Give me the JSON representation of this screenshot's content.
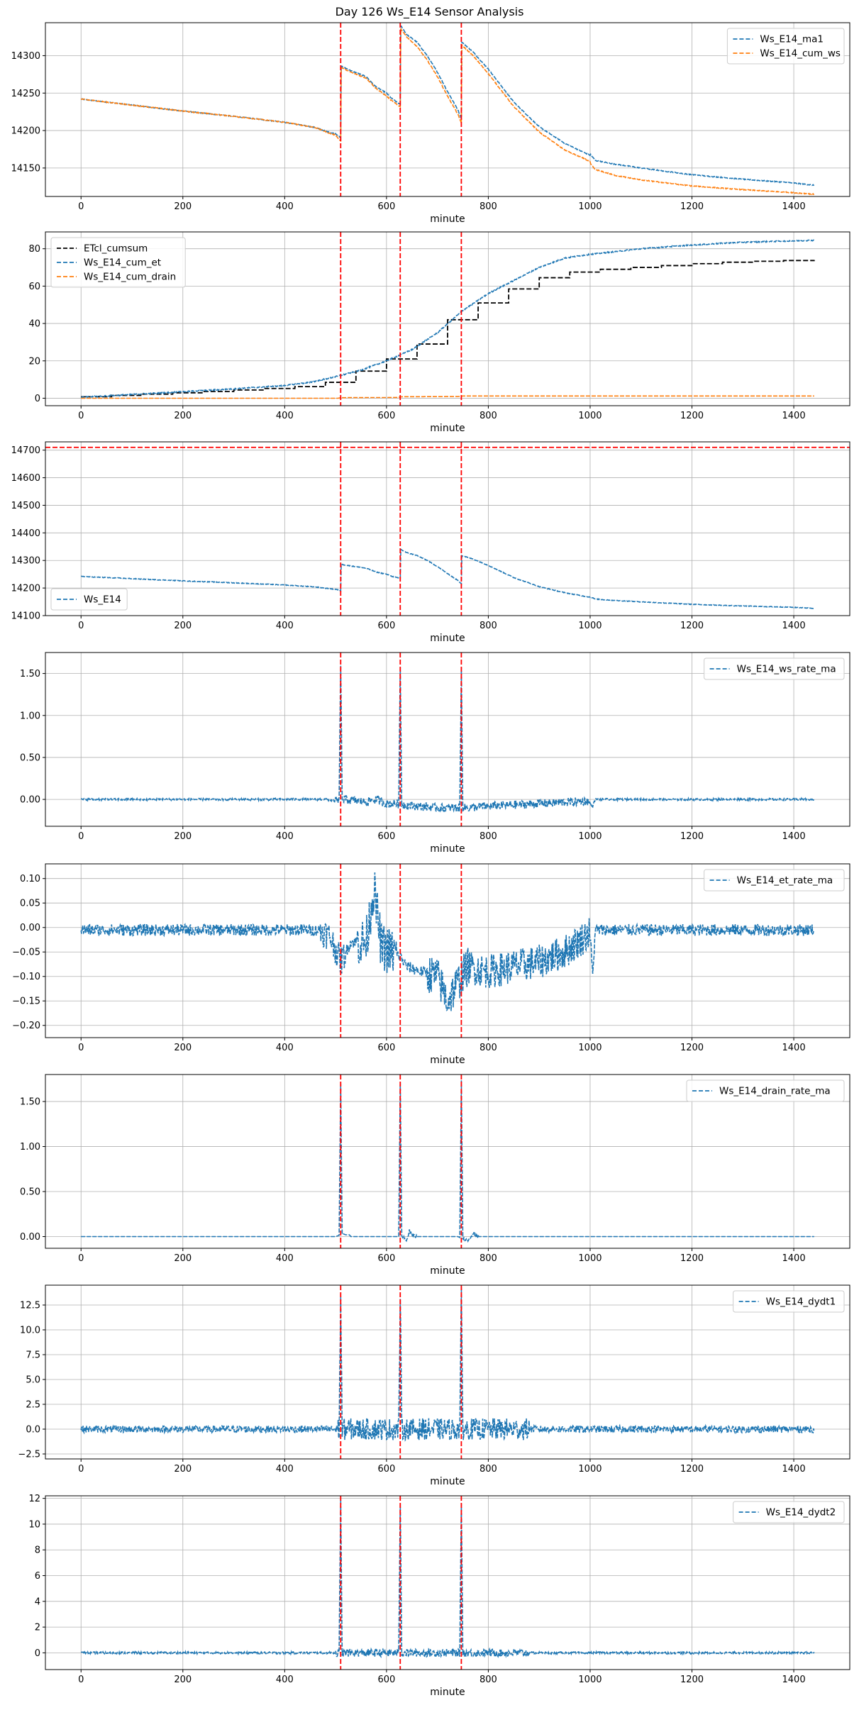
{
  "colors": {
    "blue": "#1f77b4",
    "orange": "#ff7f0e",
    "black": "#000000",
    "red": "#ff0000",
    "grid": "#b0b0b0"
  },
  "chart_data": {
    "title": "Day 126 Ws_E14 Sensor Analysis",
    "type": "line",
    "event_lines_x": [
      510,
      627,
      747
    ],
    "panels": [
      {
        "id": "ma1-cumws",
        "xlabel": "minute",
        "xlim": [
          -70,
          1510
        ],
        "xticks": [
          0,
          200,
          400,
          600,
          800,
          1000,
          1200,
          1400
        ],
        "ylim": [
          14112,
          14344
        ],
        "yticks": [
          14150,
          14200,
          14250,
          14300
        ],
        "legend_loc": "upper-right",
        "hline": null,
        "series": [
          {
            "name": "Ws_E14_ma1",
            "color": "blue",
            "style": "dashed",
            "noise": 0.6,
            "x": [
              0,
              100,
              200,
              300,
              400,
              460,
              490,
              500,
              510,
              511,
              530,
              560,
              580,
              600,
              610,
              620,
              627,
              628,
              640,
              660,
              680,
              700,
              720,
              740,
              747,
              748,
              770,
              800,
              850,
              900,
              950,
              990,
              1000,
              1001,
              1010,
              1050,
              1100,
              1200,
              1300,
              1400,
              1440
            ],
            "y": [
              14242,
              14234,
              14226,
              14219,
              14211,
              14204,
              14197,
              14196,
              14190,
              14286,
              14280,
              14272,
              14258,
              14250,
              14243,
              14238,
              14235,
              14340,
              14328,
              14318,
              14300,
              14278,
              14252,
              14228,
              14216,
              14318,
              14305,
              14282,
              14238,
              14205,
              14183,
              14170,
              14167,
              14168,
              14160,
              14155,
              14150,
              14141,
              14135,
              14130,
              14127
            ]
          },
          {
            "name": "Ws_E14_cum_ws",
            "color": "orange",
            "style": "dashed",
            "noise": 0.6,
            "x": [
              0,
              100,
              200,
              300,
              400,
              460,
              490,
              500,
              510,
              511,
              530,
              560,
              580,
              600,
              610,
              620,
              627,
              628,
              640,
              660,
              680,
              700,
              720,
              740,
              747,
              748,
              770,
              800,
              850,
              900,
              950,
              990,
              1000,
              1001,
              1010,
              1050,
              1100,
              1200,
              1300,
              1400,
              1440
            ],
            "y": [
              14242,
              14234,
              14226,
              14219,
              14211,
              14204,
              14196,
              14194,
              14186,
              14284,
              14278,
              14270,
              14256,
              14246,
              14240,
              14235,
              14232,
              14336,
              14325,
              14312,
              14294,
              14272,
              14246,
              14222,
              14210,
              14314,
              14300,
              14276,
              14232,
              14198,
              14174,
              14162,
              14158,
              14155,
              14148,
              14140,
              14134,
              14126,
              14121,
              14117,
              14115
            ]
          }
        ]
      },
      {
        "id": "cumulative",
        "xlabel": "minute",
        "xlim": [
          -70,
          1510
        ],
        "xticks": [
          0,
          200,
          400,
          600,
          800,
          1000,
          1200,
          1400
        ],
        "ylim": [
          -4,
          89
        ],
        "yticks": [
          0,
          20,
          40,
          60,
          80
        ],
        "legend_loc": "upper-left",
        "hline": null,
        "series": [
          {
            "name": "ETcl_cumsum",
            "color": "black",
            "style": "step",
            "noise": 0,
            "x": [
              0,
              60,
              120,
              180,
              240,
              300,
              360,
              420,
              480,
              540,
              600,
              660,
              720,
              780,
              840,
              900,
              960,
              1020,
              1080,
              1140,
              1200,
              1260,
              1320,
              1380,
              1440
            ],
            "y": [
              0.8,
              1.5,
              2.2,
              2.9,
              3.6,
              4.4,
              5.2,
              6.2,
              8.5,
              14.5,
              21,
              29,
              42,
              51,
              58.5,
              64.5,
              67.5,
              69,
              70,
              71,
              72,
              72.8,
              73.3,
              73.7,
              74
            ]
          },
          {
            "name": "Ws_E14_cum_et",
            "color": "blue",
            "style": "dashed",
            "noise": 0.3,
            "x": [
              0,
              100,
              200,
              300,
              400,
              450,
              500,
              550,
              600,
              650,
              700,
              750,
              800,
              850,
              900,
              950,
              1000,
              1100,
              1200,
              1300,
              1440
            ],
            "y": [
              0.5,
              2,
              3.5,
              5,
              6.8,
              8.5,
              11.5,
              15,
              20,
              26,
              35,
              47,
              56,
              63,
              70,
              75,
              77,
              80,
              82,
              83.5,
              84.5
            ]
          },
          {
            "name": "Ws_E14_cum_drain",
            "color": "orange",
            "style": "dashed",
            "noise": 0,
            "x": [
              0,
              505,
              511,
              620,
              630,
              740,
              750,
              1440
            ],
            "y": [
              0,
              0,
              0.3,
              0.4,
              0.8,
              0.9,
              1.2,
              1.2
            ]
          }
        ]
      },
      {
        "id": "raw",
        "xlabel": "minute",
        "xlim": [
          -70,
          1510
        ],
        "xticks": [
          0,
          200,
          400,
          600,
          800,
          1000,
          1200,
          1400
        ],
        "ylim": [
          14100,
          14730
        ],
        "yticks": [
          14100,
          14200,
          14300,
          14400,
          14500,
          14600,
          14700
        ],
        "legend_loc": "lower-left",
        "hline": 14710,
        "series": [
          {
            "name": "Ws_E14",
            "color": "blue",
            "style": "dashed",
            "noise": 1.2,
            "x": [
              0,
              100,
              200,
              300,
              400,
              460,
              490,
              500,
              510,
              511,
              530,
              560,
              580,
              600,
              610,
              620,
              627,
              628,
              640,
              660,
              680,
              700,
              720,
              740,
              747,
              748,
              770,
              800,
              850,
              900,
              950,
              990,
              1000,
              1001,
              1010,
              1050,
              1100,
              1200,
              1300,
              1400,
              1440
            ],
            "y": [
              14242,
              14234,
              14226,
              14219,
              14211,
              14204,
              14197,
              14196,
              14190,
              14286,
              14280,
              14272,
              14258,
              14250,
              14243,
              14238,
              14235,
              14340,
              14328,
              14318,
              14300,
              14278,
              14252,
              14228,
              14216,
              14318,
              14305,
              14282,
              14238,
              14205,
              14183,
              14170,
              14167,
              14168,
              14160,
              14155,
              14150,
              14141,
              14135,
              14130,
              14127
            ]
          }
        ]
      },
      {
        "id": "ws-rate",
        "xlabel": "minute",
        "xlim": [
          -70,
          1510
        ],
        "xticks": [
          0,
          200,
          400,
          600,
          800,
          1000,
          1200,
          1400
        ],
        "ylim": [
          -0.32,
          1.75
        ],
        "yticks": [
          0.0,
          0.5,
          1.0,
          1.5
        ],
        "legend_loc": "upper-right",
        "hline": null,
        "series": [
          {
            "name": "Ws_E14_ws_rate_ma",
            "color": "blue",
            "style": "dashed",
            "noise": 0.012,
            "noise_ranges": [
              [
                500,
                1000,
                0.05
              ]
            ],
            "spikes": [
              [
                510,
                1.65
              ],
              [
                627,
                1.62
              ],
              [
                747,
                1.65
              ]
            ],
            "x": [
              0,
              480,
              500,
              520,
              560,
              580,
              600,
              620,
              640,
              700,
              760,
              800,
              900,
              995,
              1000,
              1005,
              1010,
              1440
            ],
            "y": [
              0,
              0,
              -0.02,
              0,
              -0.03,
              0,
              -0.05,
              -0.05,
              -0.07,
              -0.1,
              -0.1,
              -0.08,
              -0.05,
              -0.02,
              -0.05,
              -0.08,
              0,
              0
            ]
          }
        ]
      },
      {
        "id": "et-rate",
        "xlabel": "minute",
        "xlim": [
          -70,
          1510
        ],
        "xticks": [
          0,
          200,
          400,
          600,
          800,
          1000,
          1200,
          1400
        ],
        "ylim": [
          -0.225,
          0.13
        ],
        "yticks": [
          -0.2,
          -0.15,
          -0.1,
          -0.05,
          0.0,
          0.05,
          0.1
        ],
        "legend_loc": "upper-right",
        "hline": null,
        "series": [
          {
            "name": "Ws_E14_et_rate_ma",
            "color": "blue",
            "style": "dashed",
            "noise": 0.012,
            "noise_ranges": [
              [
                470,
                520,
                0.03
              ],
              [
                540,
                620,
                0.05
              ],
              [
                680,
                760,
                0.04
              ],
              [
                760,
                1000,
                0.035
              ]
            ],
            "x": [
              0,
              470,
              490,
              510,
              530,
              560,
              575,
              590,
              610,
              627,
              640,
              700,
              720,
              747,
              760,
              800,
              850,
              900,
              950,
              1000,
              1005,
              1010,
              1440
            ],
            "y": [
              -0.005,
              -0.005,
              -0.02,
              -0.07,
              -0.03,
              -0.03,
              0.08,
              -0.04,
              -0.05,
              -0.06,
              -0.08,
              -0.1,
              -0.15,
              -0.1,
              -0.08,
              -0.09,
              -0.08,
              -0.07,
              -0.05,
              -0.01,
              -0.1,
              -0.005,
              -0.005
            ]
          }
        ]
      },
      {
        "id": "drain-rate",
        "xlabel": "minute",
        "xlim": [
          -70,
          1510
        ],
        "xticks": [
          0,
          200,
          400,
          600,
          800,
          1000,
          1200,
          1400
        ],
        "ylim": [
          -0.13,
          1.8
        ],
        "yticks": [
          0.0,
          0.5,
          1.0,
          1.5
        ],
        "legend_loc": "upper-right",
        "hline": null,
        "series": [
          {
            "name": "Ws_E14_drain_rate_ma",
            "color": "blue",
            "style": "dashed",
            "noise": 0,
            "noise_ranges": [
              [
                625,
                660,
                0.02
              ],
              [
                745,
                780,
                0.02
              ]
            ],
            "spikes": [
              [
                510,
                1.68
              ],
              [
                627,
                1.7
              ],
              [
                747,
                1.75
              ]
            ],
            "x": [
              0,
              500,
              515,
              520,
              527,
              530,
              625,
              640,
              645,
              650,
              660,
              740,
              760,
              770,
              780,
              1440
            ],
            "y": [
              0,
              0,
              0.03,
              0.02,
              0.02,
              0,
              0,
              -0.03,
              0.06,
              0.02,
              0,
              0,
              -0.05,
              0.04,
              0,
              0
            ]
          }
        ]
      },
      {
        "id": "dydt1",
        "xlabel": "minute",
        "xlim": [
          -70,
          1510
        ],
        "xticks": [
          0,
          200,
          400,
          600,
          800,
          1000,
          1200,
          1400
        ],
        "ylim": [
          -3.0,
          14.5
        ],
        "yticks": [
          -2.5,
          0.0,
          2.5,
          5.0,
          7.5,
          10.0,
          12.5
        ],
        "legend_loc": "upper-right",
        "hline": null,
        "series": [
          {
            "name": "Ws_E14_dydt1",
            "color": "blue",
            "style": "dashed",
            "noise": 0.35,
            "noise_ranges": [
              [
                500,
                880,
                1.1
              ]
            ],
            "spikes": [
              [
                510,
                13.4
              ],
              [
                627,
                13.2
              ],
              [
                747,
                13.3
              ]
            ],
            "x": [
              0,
              1440
            ],
            "y": [
              0,
              0
            ]
          }
        ]
      },
      {
        "id": "dydt2",
        "xlabel": "minute",
        "xlim": [
          -70,
          1510
        ],
        "xticks": [
          0,
          200,
          400,
          600,
          800,
          1000,
          1200,
          1400
        ],
        "ylim": [
          -1.3,
          12.2
        ],
        "yticks": [
          0,
          2,
          4,
          6,
          8,
          10,
          12
        ],
        "legend_loc": "upper-right",
        "hline": null,
        "series": [
          {
            "name": "Ws_E14_dydt2",
            "color": "blue",
            "style": "dashed",
            "noise": 0.08,
            "noise_ranges": [
              [
                500,
                880,
                0.3
              ]
            ],
            "spikes": [
              [
                510,
                11.8
              ],
              [
                627,
                11.7
              ],
              [
                747,
                11.8
              ]
            ],
            "x": [
              0,
              1440
            ],
            "y": [
              0,
              0
            ]
          }
        ]
      }
    ]
  }
}
